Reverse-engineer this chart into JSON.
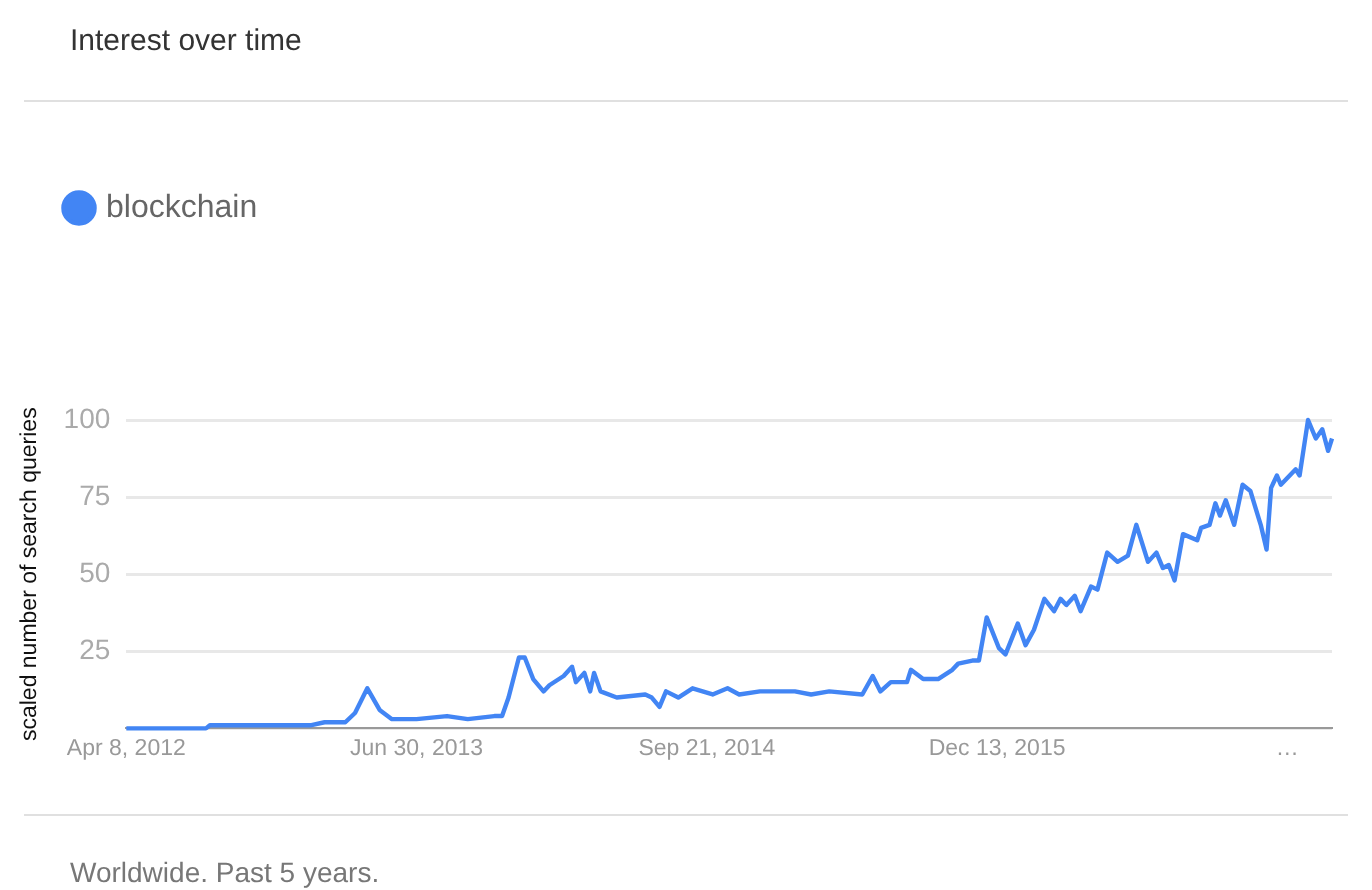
{
  "chart_data": {
    "type": "line",
    "title": "Interest over time",
    "ylabel": "scaled number of search queries",
    "annotations": [
      "Worldwide. Past 5 years."
    ],
    "series": [
      {
        "name": "blockchain",
        "color": "#4285f4",
        "x": [
          "2012-04-08",
          "2012-08-09",
          "2012-08-15",
          "2013-01-17",
          "2013-02-08",
          "2013-03-12",
          "2013-03-27",
          "2013-04-15",
          "2013-05-04",
          "2013-05-23",
          "2013-06-30",
          "2013-08-16",
          "2013-09-17",
          "2013-10-28",
          "2013-11-09",
          "2013-11-19",
          "2013-12-05",
          "2013-12-14",
          "2013-12-27",
          "2014-01-12",
          "2014-01-21",
          "2014-02-12",
          "2014-02-25",
          "2014-03-03",
          "2014-03-16",
          "2014-03-25",
          "2014-03-31",
          "2014-04-10",
          "2014-05-05",
          "2014-06-18",
          "2014-06-28",
          "2014-07-10",
          "2014-07-20",
          "2014-08-08",
          "2014-08-30",
          "2014-09-30",
          "2014-10-23",
          "2014-11-10",
          "2014-12-12",
          "2015-02-04",
          "2015-03-01",
          "2015-03-29",
          "2015-05-19",
          "2015-06-04",
          "2015-06-16",
          "2015-07-02",
          "2015-07-27",
          "2015-08-02",
          "2015-08-21",
          "2015-09-13",
          "2015-10-05",
          "2015-10-14",
          "2015-11-05",
          "2015-11-15",
          "2015-11-27",
          "2015-12-16",
          "2015-12-26",
          "2016-01-14",
          "2016-01-26",
          "2016-02-08",
          "2016-02-24",
          "2016-03-10",
          "2016-03-20",
          "2016-03-29",
          "2016-04-11",
          "2016-04-20",
          "2016-05-06",
          "2016-05-16",
          "2016-05-31",
          "2016-06-16",
          "2016-07-02",
          "2016-07-15",
          "2016-08-02",
          "2016-08-15",
          "2016-08-25",
          "2016-09-03",
          "2016-09-12",
          "2016-09-25",
          "2016-10-17",
          "2016-10-23",
          "2016-11-05",
          "2016-11-14",
          "2016-11-21",
          "2016-11-30",
          "2016-12-13",
          "2016-12-26",
          "2017-01-07",
          "2017-01-20",
          "2017-01-23",
          "2017-02-01",
          "2017-02-08",
          "2017-02-17",
          "2017-02-23",
          "2017-03-18",
          "2017-03-24",
          "2017-04-06",
          "2017-04-18",
          "2017-04-28",
          "2017-05-07",
          "2017-05-13"
        ],
        "values": [
          0,
          0,
          1,
          1,
          2,
          2,
          5,
          13,
          6,
          3,
          3,
          4,
          3,
          4,
          4,
          10,
          23,
          23,
          16,
          12,
          14,
          17,
          20,
          15,
          18,
          12,
          18,
          12,
          10,
          11,
          10,
          7,
          12,
          10,
          13,
          11,
          13,
          11,
          12,
          12,
          11,
          12,
          11,
          17,
          12,
          15,
          15,
          19,
          16,
          16,
          19,
          21,
          22,
          22,
          36,
          26,
          24,
          34,
          27,
          32,
          42,
          38,
          42,
          40,
          43,
          38,
          46,
          45,
          57,
          54,
          56,
          66,
          54,
          57,
          52,
          53,
          48,
          63,
          61,
          65,
          66,
          73,
          69,
          74,
          66,
          79,
          77,
          68,
          66,
          58,
          78,
          82,
          79,
          84,
          82,
          100,
          94,
          97,
          90,
          94
        ]
      }
    ],
    "xlim": [
      "2012-04-08",
      "2017-05-13"
    ],
    "xticks": [
      {
        "value": "2012-04-08",
        "label": "Apr 8, 2012"
      },
      {
        "value": "2013-06-30",
        "label": "Jun 30, 2013"
      },
      {
        "value": "2014-09-21",
        "label": "Sep 21, 2014"
      },
      {
        "value": "2015-12-13",
        "label": "Dec 13, 2015"
      },
      {
        "value": "2017-03-05",
        "label": "…"
      }
    ],
    "ylim": [
      0,
      100
    ],
    "yticks": [
      {
        "value": 0,
        "label": null
      },
      25,
      50,
      75,
      100
    ],
    "grid": "y",
    "legend": "top left",
    "marker": "none",
    "line_style": "solid"
  }
}
